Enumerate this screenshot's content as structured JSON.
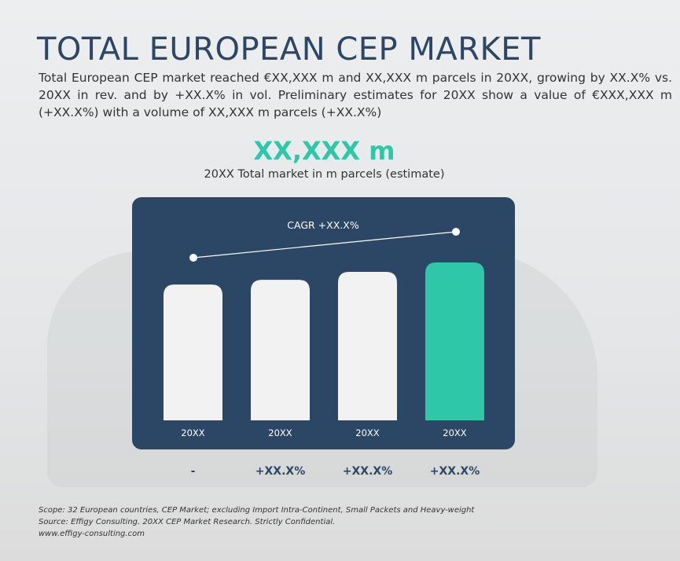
{
  "title": "TOTAL EUROPEAN CEP MARKET",
  "description": "Total European CEP market reached €XX,XXX m and XX,XXX m parcels in 20XX, growing by XX.X% vs. 20XX in rev. and by +XX.X% in vol. Preliminary estimates for 20XX show a value of €XXX,XXX m (+XX.X%) with a volume of XX,XXX m parcels (+XX.X%)",
  "kpi": {
    "value": "XX,XXX m",
    "label": "20XX Total market in m parcels (estimate)"
  },
  "chart_data": {
    "type": "bar",
    "categories": [
      "20XX",
      "20XX",
      "20XX",
      "20XX"
    ],
    "values": [
      86,
      89,
      94,
      100
    ],
    "growth_labels": [
      "-",
      "+XX.X%",
      "+XX.X%",
      "+XX.X%"
    ],
    "annotation": "CAGR +XX.X%",
    "colors": {
      "panel": "#2c4766",
      "bar": "#f2f2f2",
      "highlight": "#2ec8a8"
    }
  },
  "footer": {
    "scope": "Scope: 32 European countries, CEP Market; excluding Import Intra-Continent, Small Packets and Heavy-weight",
    "source": "Source: Effigy Consulting. 20XX CEP Market Research. Strictly Confidential.",
    "url": "www.effigy-consulting.com"
  }
}
